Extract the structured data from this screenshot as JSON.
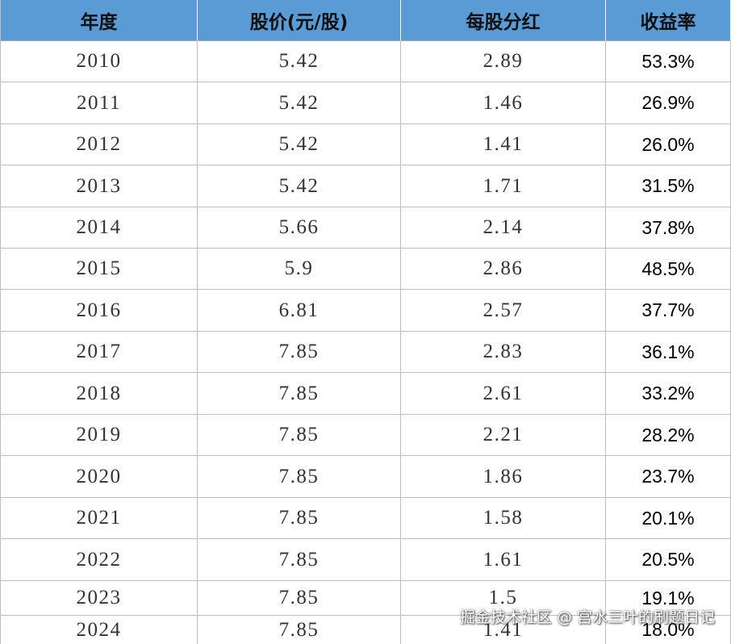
{
  "table": {
    "header": [
      "年度",
      "股价(元/股)",
      "每股分红",
      "收益率"
    ],
    "rows": [
      [
        "2010",
        "5.42",
        "2.89",
        "53.3%"
      ],
      [
        "2011",
        "5.42",
        "1.46",
        "26.9%"
      ],
      [
        "2012",
        "5.42",
        "1.41",
        "26.0%"
      ],
      [
        "2013",
        "5.42",
        "1.71",
        "31.5%"
      ],
      [
        "2014",
        "5.66",
        "2.14",
        "37.8%"
      ],
      [
        "2015",
        "5.9",
        "2.86",
        "48.5%"
      ],
      [
        "2016",
        "6.81",
        "2.57",
        "37.7%"
      ],
      [
        "2017",
        "7.85",
        "2.83",
        "36.1%"
      ],
      [
        "2018",
        "7.85",
        "2.61",
        "33.2%"
      ],
      [
        "2019",
        "7.85",
        "2.21",
        "28.2%"
      ],
      [
        "2020",
        "7.85",
        "1.86",
        "23.7%"
      ],
      [
        "2021",
        "7.85",
        "1.58",
        "20.1%"
      ],
      [
        "2022",
        "7.85",
        "1.61",
        "20.5%"
      ],
      [
        "2023",
        "7.85",
        "1.5",
        "19.1%"
      ],
      [
        "2024",
        "7.85",
        "1.41",
        "18.0%"
      ]
    ]
  },
  "watermark": "掘金技术社区 @ 宫水三叶的刷题日记"
}
